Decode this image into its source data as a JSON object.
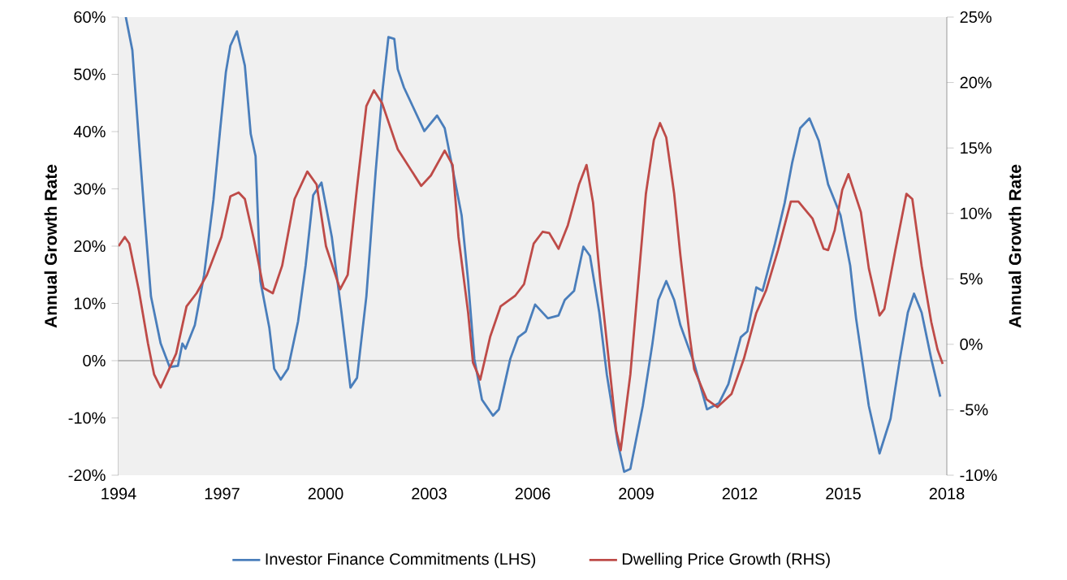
{
  "chart_data": {
    "type": "line",
    "ylabel": "Annual Growth Rate",
    "y2label": "Annual Growth Rate",
    "xlim": [
      1994,
      2018
    ],
    "xticks": [
      1994,
      1997,
      2000,
      2003,
      2006,
      2009,
      2012,
      2015,
      2018
    ],
    "ylim": [
      -20,
      60
    ],
    "yticks": [
      {
        "value": -20,
        "label": "-20%"
      },
      {
        "value": -10,
        "label": "-10%"
      },
      {
        "value": 0,
        "label": "0%"
      },
      {
        "value": 10,
        "label": "10%"
      },
      {
        "value": 20,
        "label": "20%"
      },
      {
        "value": 30,
        "label": "30%"
      },
      {
        "value": 40,
        "label": "40%"
      },
      {
        "value": 50,
        "label": "50%"
      },
      {
        "value": 60,
        "label": "60%"
      }
    ],
    "y2lim": [
      -10,
      25
    ],
    "y2ticks": [
      {
        "value": -10,
        "label": "-10%"
      },
      {
        "value": -5,
        "label": "-5%"
      },
      {
        "value": 0,
        "label": "0%"
      },
      {
        "value": 5,
        "label": "5%"
      },
      {
        "value": 10,
        "label": "10%"
      },
      {
        "value": 15,
        "label": "15%"
      },
      {
        "value": 20,
        "label": "20%"
      },
      {
        "value": 25,
        "label": "25%"
      }
    ],
    "grid": false,
    "legend": "bottom",
    "marker": "none",
    "line_style": "solid",
    "ref_lines": [
      {
        "axis": "y",
        "value": 0,
        "color": "#808080"
      }
    ],
    "series": [
      {
        "name": "Investor Finance Commitments (LHS)",
        "color": "#4a7ebb",
        "axis": "y",
        "x": [
          1994.21,
          1994.4,
          1994.59,
          1994.76,
          1994.94,
          1995.22,
          1995.48,
          1995.72,
          1995.85,
          1995.94,
          1996.21,
          1996.48,
          1996.75,
          1996.94,
          1997.11,
          1997.24,
          1997.43,
          1997.66,
          1997.83,
          1997.97,
          1998.11,
          1998.37,
          1998.51,
          1998.7,
          1998.91,
          1999.2,
          1999.42,
          1999.64,
          1999.88,
          2000.18,
          2000.46,
          2000.72,
          2000.91,
          2001.18,
          2001.45,
          2001.64,
          2001.82,
          2001.99,
          2002.09,
          2002.27,
          2002.86,
          2003.23,
          2003.45,
          2003.68,
          2003.94,
          2004.13,
          2004.31,
          2004.53,
          2004.85,
          2005.02,
          2005.35,
          2005.58,
          2005.8,
          2006.07,
          2006.44,
          2006.75,
          2006.93,
          2007.2,
          2007.47,
          2007.66,
          2007.93,
          2008.15,
          2008.47,
          2008.65,
          2008.83,
          2009.19,
          2009.47,
          2009.64,
          2009.87,
          2010.1,
          2010.28,
          2010.67,
          2011.05,
          2011.4,
          2011.67,
          2012.03,
          2012.22,
          2012.48,
          2012.66,
          2013.02,
          2013.3,
          2013.52,
          2013.75,
          2014.02,
          2014.29,
          2014.56,
          2014.92,
          2015.2,
          2015.37,
          2015.74,
          2016.05,
          2016.37,
          2016.64,
          2016.87,
          2017.05,
          2017.27,
          2017.55,
          2017.81
        ],
        "values": [
          60,
          54.2,
          38.4,
          24.8,
          11.2,
          3.0,
          -1.1,
          -0.9,
          3.0,
          2.1,
          6.2,
          15.0,
          28.1,
          40.1,
          50.4,
          55.0,
          57.5,
          51.5,
          39.6,
          35.7,
          13.9,
          5.7,
          -1.4,
          -3.3,
          -1.4,
          6.8,
          16.6,
          28.9,
          31.1,
          21.6,
          8.4,
          -4.7,
          -3.0,
          11.2,
          33.0,
          46.7,
          56.5,
          56.2,
          50.9,
          47.7,
          40.1,
          42.8,
          40.6,
          33.5,
          25.4,
          13.9,
          0.3,
          -6.8,
          -9.6,
          -8.5,
          0.3,
          4.1,
          5.1,
          9.8,
          7.4,
          7.9,
          10.6,
          12.2,
          19.9,
          18.3,
          8.4,
          -2.5,
          -14.5,
          -19.4,
          -18.9,
          -7.9,
          3.0,
          10.6,
          13.9,
          10.6,
          6.2,
          -0.3,
          -8.5,
          -7.4,
          -4.1,
          4.1,
          5.1,
          12.8,
          12.2,
          20.4,
          27.5,
          34.6,
          40.6,
          42.3,
          38.4,
          30.8,
          25.4,
          16.6,
          7.4,
          -7.9,
          -16.2,
          -10.1,
          0.3,
          8.4,
          11.7,
          8.4,
          0.3,
          -6.3
        ]
      },
      {
        "name": "Dwelling Price Growth (RHS)",
        "color": "#be4b48",
        "axis": "y2",
        "x": [
          1994.0,
          1994.18,
          1994.31,
          1994.59,
          1994.85,
          1995.03,
          1995.22,
          1995.43,
          1995.67,
          1995.97,
          1996.26,
          1996.56,
          1996.98,
          1997.24,
          1997.48,
          1997.66,
          1997.93,
          1998.2,
          1998.47,
          1998.74,
          1999.1,
          1999.47,
          1999.74,
          2000.01,
          2000.42,
          2000.64,
          2000.91,
          2001.18,
          2001.4,
          2001.64,
          2002.09,
          2002.77,
          2003.05,
          2003.45,
          2003.68,
          2003.85,
          2004.13,
          2004.27,
          2004.48,
          2004.77,
          2005.07,
          2005.49,
          2005.75,
          2006.03,
          2006.29,
          2006.48,
          2006.75,
          2007.02,
          2007.34,
          2007.56,
          2007.75,
          2007.96,
          2008.2,
          2008.42,
          2008.55,
          2008.83,
          2009.06,
          2009.28,
          2009.51,
          2009.69,
          2009.87,
          2010.1,
          2010.28,
          2010.55,
          2010.68,
          2011.04,
          2011.35,
          2011.76,
          2012.12,
          2012.48,
          2012.76,
          2013.11,
          2013.48,
          2013.7,
          2014.11,
          2014.43,
          2014.56,
          2014.75,
          2014.97,
          2015.15,
          2015.51,
          2015.74,
          2016.05,
          2016.19,
          2016.51,
          2016.83,
          2017.0,
          2017.27,
          2017.55,
          2017.73,
          2017.88
        ],
        "values": [
          7.5,
          8.2,
          7.7,
          4.1,
          0.1,
          -2.3,
          -3.3,
          -2.1,
          -0.7,
          2.9,
          3.9,
          5.3,
          8.2,
          11.3,
          11.6,
          11.1,
          7.9,
          4.3,
          3.9,
          6.0,
          11.1,
          13.2,
          12.2,
          7.5,
          4.2,
          5.3,
          12.0,
          18.2,
          19.4,
          18.4,
          14.9,
          12.1,
          12.9,
          14.8,
          13.7,
          8.2,
          2.4,
          -1.4,
          -2.7,
          0.6,
          2.9,
          3.7,
          4.6,
          7.7,
          8.6,
          8.5,
          7.3,
          9.1,
          12.2,
          13.7,
          10.8,
          4.8,
          -1.1,
          -6.6,
          -8.1,
          -2.3,
          4.8,
          11.5,
          15.6,
          16.9,
          15.8,
          11.5,
          6.8,
          0.6,
          -1.9,
          -4.2,
          -4.8,
          -3.8,
          -1.1,
          2.4,
          4.1,
          7.2,
          10.9,
          10.9,
          9.6,
          7.3,
          7.2,
          8.7,
          11.8,
          13.0,
          10.1,
          5.8,
          2.2,
          2.7,
          7.2,
          11.5,
          11.1,
          6.0,
          1.7,
          -0.4,
          -1.5
        ]
      }
    ]
  }
}
